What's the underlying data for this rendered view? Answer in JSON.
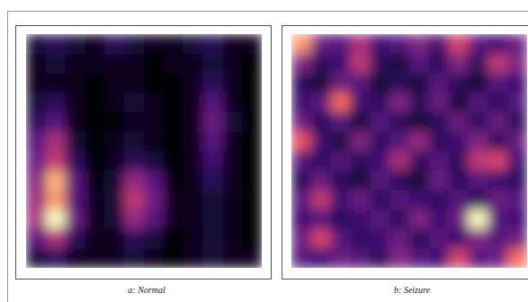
{
  "chart_data": [
    {
      "type": "heatmap",
      "title": "a: Normal",
      "color": "magma",
      "tick_labels": false,
      "cells": [
        [
          0.15,
          0.2,
          0.15,
          0.1,
          0.2,
          0.15,
          0.1,
          0.1,
          0.15,
          0.2,
          0.1,
          0.1
        ],
        [
          0.1,
          0.15,
          0.1,
          0.1,
          0.1,
          0.1,
          0.05,
          0.1,
          0.1,
          0.15,
          0.1,
          0.05
        ],
        [
          0.1,
          0.1,
          0.1,
          0.05,
          0.1,
          0.1,
          0.05,
          0.05,
          0.1,
          0.2,
          0.1,
          0.05
        ],
        [
          0.15,
          0.2,
          0.1,
          0.05,
          0.1,
          0.15,
          0.1,
          0.05,
          0.1,
          0.3,
          0.1,
          0.05
        ],
        [
          0.2,
          0.3,
          0.1,
          0.05,
          0.05,
          0.1,
          0.1,
          0.05,
          0.1,
          0.35,
          0.15,
          0.05
        ],
        [
          0.3,
          0.5,
          0.15,
          0.05,
          0.1,
          0.15,
          0.1,
          0.05,
          0.1,
          0.3,
          0.1,
          0.05
        ],
        [
          0.35,
          0.55,
          0.2,
          0.05,
          0.1,
          0.2,
          0.15,
          0.05,
          0.1,
          0.25,
          0.1,
          0.05
        ],
        [
          0.4,
          0.85,
          0.3,
          0.05,
          0.15,
          0.45,
          0.3,
          0.05,
          0.1,
          0.2,
          0.1,
          0.05
        ],
        [
          0.45,
          0.8,
          0.3,
          0.1,
          0.15,
          0.55,
          0.35,
          0.1,
          0.1,
          0.15,
          0.1,
          0.05
        ],
        [
          0.5,
          1.0,
          0.35,
          0.1,
          0.15,
          0.45,
          0.3,
          0.1,
          0.1,
          0.15,
          0.1,
          0.05
        ],
        [
          0.3,
          0.5,
          0.2,
          0.1,
          0.1,
          0.2,
          0.15,
          0.05,
          0.1,
          0.15,
          0.1,
          0.05
        ],
        [
          0.15,
          0.2,
          0.1,
          0.1,
          0.1,
          0.15,
          0.1,
          0.05,
          0.1,
          0.15,
          0.1,
          0.1
        ]
      ]
    },
    {
      "type": "heatmap",
      "title": "b: Seizure",
      "color": "magma",
      "tick_labels": false,
      "cells": [
        [
          0.8,
          0.35,
          0.3,
          0.5,
          0.25,
          0.3,
          0.4,
          0.25,
          0.6,
          0.3,
          0.25,
          0.35
        ],
        [
          0.4,
          0.2,
          0.25,
          0.55,
          0.2,
          0.15,
          0.3,
          0.2,
          0.4,
          0.2,
          0.55,
          0.4
        ],
        [
          0.2,
          0.15,
          0.35,
          0.3,
          0.15,
          0.2,
          0.15,
          0.3,
          0.2,
          0.15,
          0.3,
          0.25
        ],
        [
          0.25,
          0.3,
          0.7,
          0.25,
          0.2,
          0.4,
          0.2,
          0.35,
          0.15,
          0.3,
          0.2,
          0.3
        ],
        [
          0.35,
          0.2,
          0.3,
          0.15,
          0.3,
          0.2,
          0.15,
          0.2,
          0.35,
          0.2,
          0.35,
          0.2
        ],
        [
          0.65,
          0.25,
          0.15,
          0.4,
          0.2,
          0.3,
          0.45,
          0.2,
          0.25,
          0.4,
          0.2,
          0.35
        ],
        [
          0.3,
          0.2,
          0.3,
          0.2,
          0.25,
          0.5,
          0.2,
          0.3,
          0.2,
          0.55,
          0.6,
          0.25
        ],
        [
          0.2,
          0.35,
          0.2,
          0.15,
          0.3,
          0.2,
          0.15,
          0.35,
          0.2,
          0.3,
          0.25,
          0.2
        ],
        [
          0.3,
          0.55,
          0.25,
          0.35,
          0.2,
          0.3,
          0.25,
          0.2,
          0.3,
          0.2,
          0.35,
          0.3
        ],
        [
          0.25,
          0.3,
          0.2,
          0.25,
          0.3,
          0.2,
          0.4,
          0.25,
          0.35,
          1.0,
          0.3,
          0.25
        ],
        [
          0.35,
          0.6,
          0.3,
          0.2,
          0.25,
          0.35,
          0.2,
          0.3,
          0.25,
          0.4,
          0.3,
          0.35
        ],
        [
          0.3,
          0.25,
          0.35,
          0.3,
          0.2,
          0.4,
          0.3,
          0.25,
          0.6,
          0.3,
          0.35,
          0.7
        ]
      ]
    }
  ]
}
